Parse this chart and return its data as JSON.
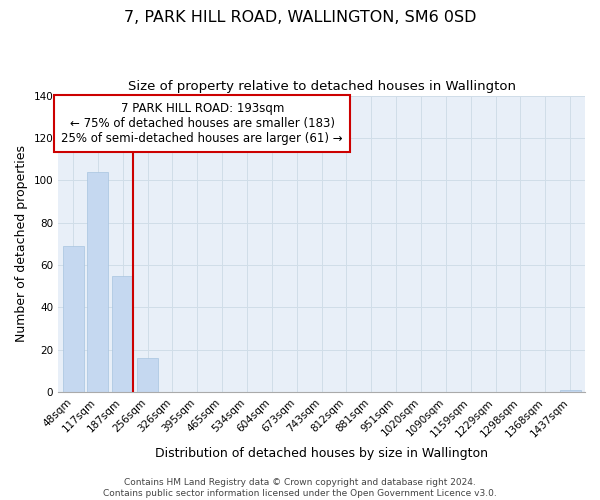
{
  "title": "7, PARK HILL ROAD, WALLINGTON, SM6 0SD",
  "subtitle": "Size of property relative to detached houses in Wallington",
  "xlabel": "Distribution of detached houses by size in Wallington",
  "ylabel": "Number of detached properties",
  "bar_labels": [
    "48sqm",
    "117sqm",
    "187sqm",
    "256sqm",
    "326sqm",
    "395sqm",
    "465sqm",
    "534sqm",
    "604sqm",
    "673sqm",
    "743sqm",
    "812sqm",
    "881sqm",
    "951sqm",
    "1020sqm",
    "1090sqm",
    "1159sqm",
    "1229sqm",
    "1298sqm",
    "1368sqm",
    "1437sqm"
  ],
  "bar_values": [
    69,
    104,
    55,
    16,
    0,
    0,
    0,
    0,
    0,
    0,
    0,
    0,
    0,
    0,
    0,
    0,
    0,
    0,
    0,
    0,
    1
  ],
  "bar_color": "#c5d8f0",
  "bar_edge_color": "#a8c4e0",
  "vline_bar_index": 2,
  "vline_color": "#cc0000",
  "ylim": [
    0,
    140
  ],
  "yticks": [
    0,
    20,
    40,
    60,
    80,
    100,
    120,
    140
  ],
  "annotation_title": "7 PARK HILL ROAD: 193sqm",
  "annotation_line1": "← 75% of detached houses are smaller (183)",
  "annotation_line2": "25% of semi-detached houses are larger (61) →",
  "annotation_box_color": "#ffffff",
  "annotation_box_edge": "#cc0000",
  "footer_line1": "Contains HM Land Registry data © Crown copyright and database right 2024.",
  "footer_line2": "Contains public sector information licensed under the Open Government Licence v3.0.",
  "title_fontsize": 11.5,
  "subtitle_fontsize": 9.5,
  "axis_label_fontsize": 9,
  "tick_fontsize": 7.5,
  "annotation_fontsize": 8.5,
  "footer_fontsize": 6.5,
  "grid_color": "#d0dde8",
  "background_color": "#e8eff8"
}
